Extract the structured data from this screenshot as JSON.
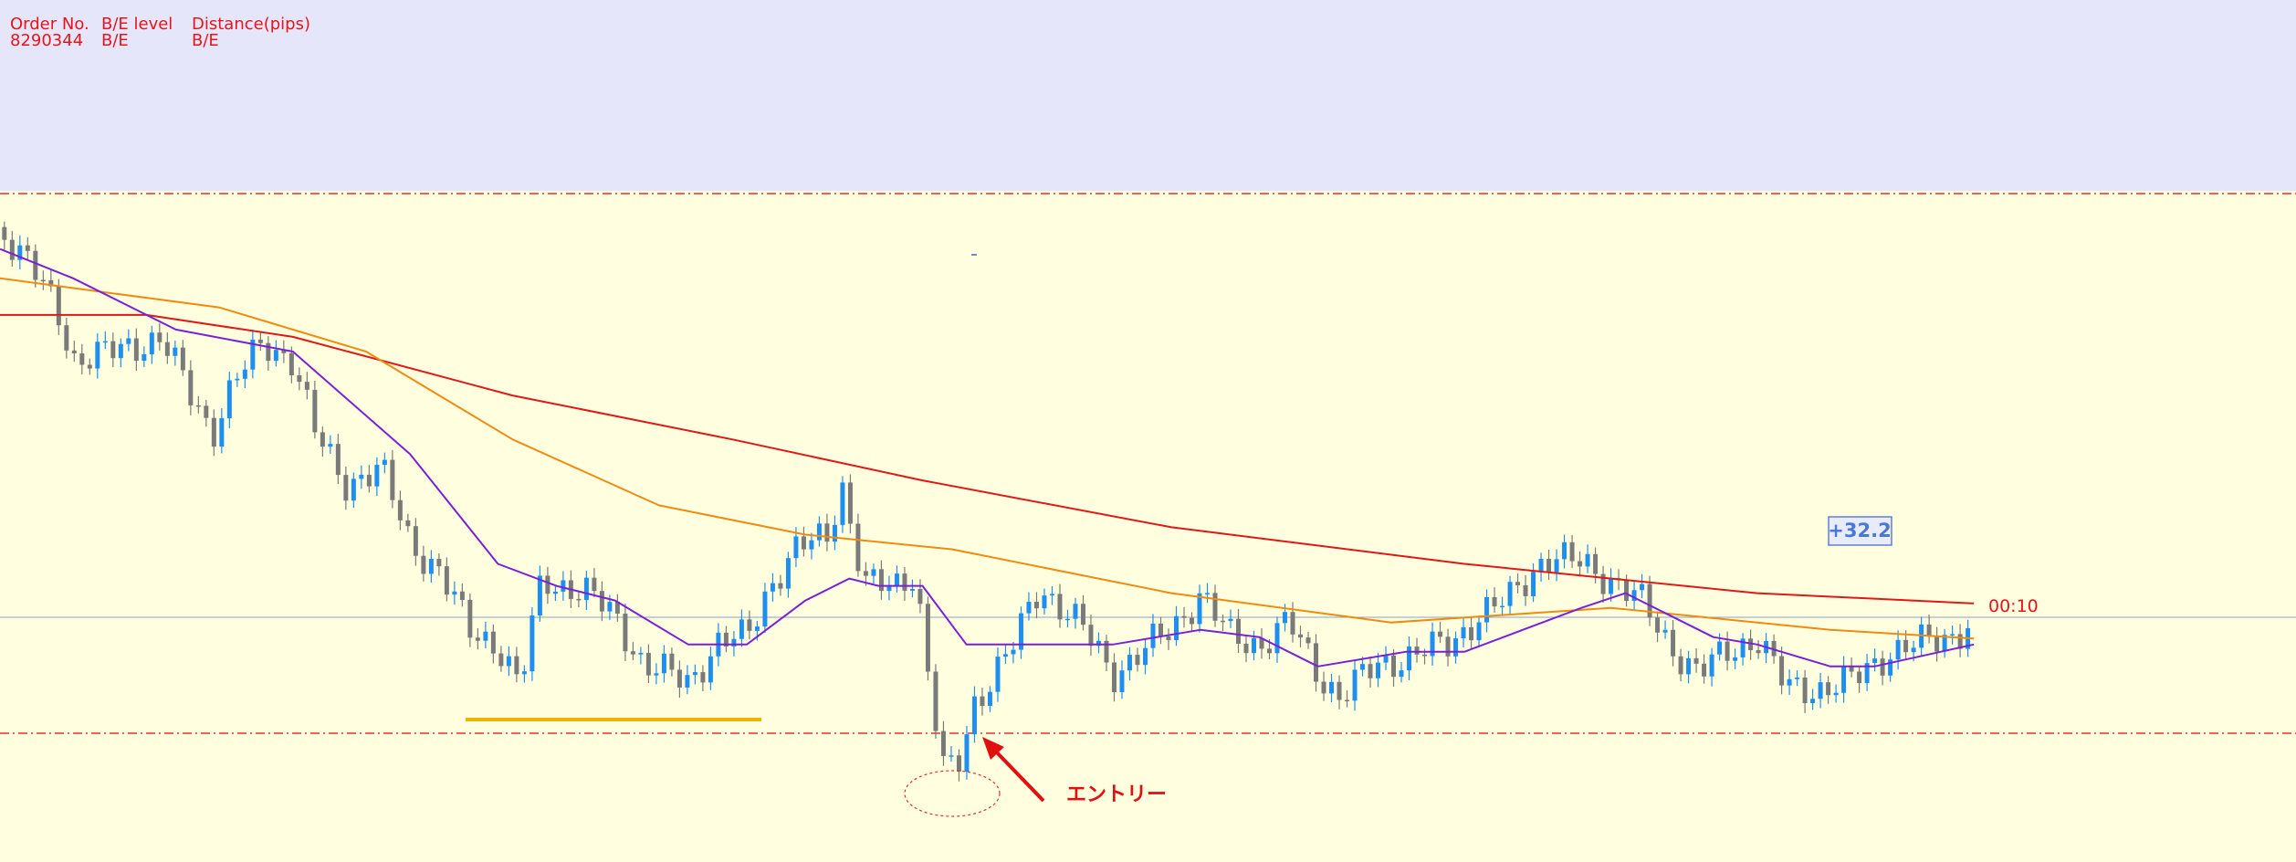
{
  "header": {
    "columns": [
      "Order No.",
      "B/E level",
      "Distance(pips)"
    ],
    "row": [
      "8290344",
      "B/E",
      "B/E"
    ]
  },
  "chart": {
    "profit_label": "+32.2",
    "timer": "00:10",
    "annotation": "エントリー"
  }
}
